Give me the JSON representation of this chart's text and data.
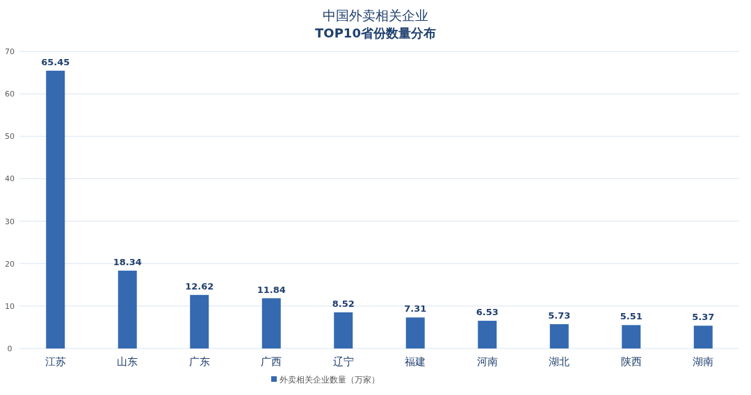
{
  "chart_data": {
    "type": "bar",
    "title": "中国外卖相关企业",
    "subtitle": "TOP10省份数量分布",
    "categories": [
      "江苏",
      "山东",
      "广东",
      "广西",
      "辽宁",
      "福建",
      "河南",
      "湖北",
      "陕西",
      "湖南"
    ],
    "series": [
      {
        "name": "外卖相关企业数量（万家）",
        "color": "#3569b0",
        "values": [
          65.45,
          18.34,
          12.62,
          11.84,
          8.52,
          7.31,
          6.53,
          5.73,
          5.51,
          5.37
        ]
      }
    ],
    "ylim": [
      0,
      70
    ],
    "yticks": [
      0,
      10,
      20,
      30,
      40,
      50,
      60,
      70
    ],
    "grid": "y",
    "legend": "bottom",
    "data_labels": true
  }
}
